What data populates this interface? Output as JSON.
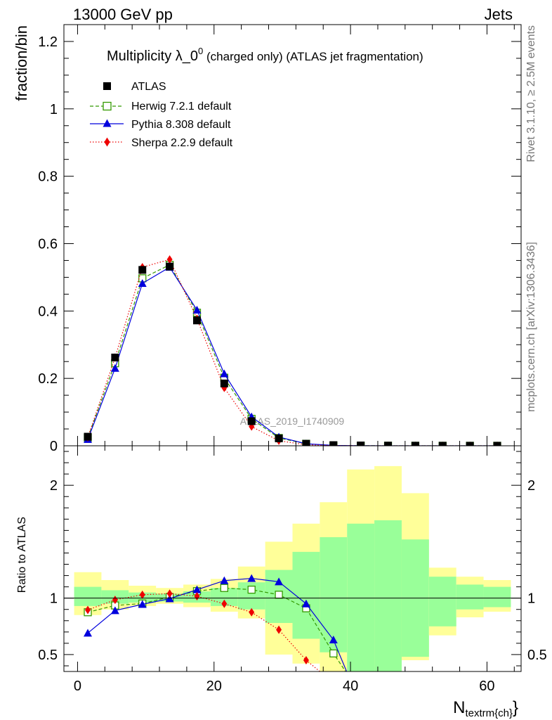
{
  "header": {
    "left": "13000 GeV pp",
    "right": "Jets"
  },
  "title": {
    "main": "Multiplicity λ_0",
    "sup": "0",
    "rest": " (charged only) (ATLAS jet fragmentation)"
  },
  "side_labels": {
    "top": "Rivet 3.1.10, ≥ 2.5M events",
    "bottom": "mcplots.cern.ch [arXiv:1306.3436]"
  },
  "watermark": "ATLAS_2019_I1740909",
  "ylabel_main": "fraction/bin",
  "ylabel_ratio": "Ratio to ATLAS",
  "xlabel": {
    "main": "N",
    "sub": "textrm{ch}",
    "close": "}"
  },
  "colors": {
    "herwig": "#339900",
    "pythia": "#0000dd",
    "sherpa": "#ee0000",
    "band_yellow": "#ffff99",
    "band_green": "#99ff99"
  },
  "chart_data": [
    {
      "type": "scatter",
      "panel": "main",
      "xlim": [
        -2,
        65
      ],
      "ylim": [
        0,
        1.25
      ],
      "xticks": [
        0,
        20,
        40,
        60
      ],
      "yticks": [
        0,
        0.2,
        0.4,
        0.6,
        0.8,
        1,
        1.2
      ],
      "ytick_labels": [
        "0",
        "0.2",
        "0.4",
        "0.6",
        "0.8",
        "1",
        "1.2"
      ],
      "legend_position": "top-left",
      "x": [
        1.5,
        5.5,
        9.5,
        13.5,
        17.5,
        21.5,
        25.5,
        29.5,
        33.5,
        37.5,
        41.5,
        45.5,
        49.5,
        53.5,
        57.5,
        61.5
      ],
      "series": [
        {
          "name": "ATLAS",
          "marker": "square",
          "values": [
            0.027,
            0.262,
            0.522,
            0.532,
            0.372,
            0.185,
            0.073,
            0.022,
            0.006,
            0.002,
            0.001,
            0.0005,
            0.0003,
            0.0002,
            0.0001,
            0.0001
          ]
        },
        {
          "name": "Herwig 7.2.1 default",
          "marker": "open-square",
          "values": [
            0.024,
            0.245,
            0.497,
            0.537,
            0.395,
            0.202,
            0.08,
            0.023,
            0.006,
            0.001,
            0.0003,
            0.0001,
            0.0,
            0.0,
            0.0,
            0.0
          ]
        },
        {
          "name": "Pythia 8.308 default",
          "marker": "triangle",
          "values": [
            0.019,
            0.23,
            0.482,
            0.53,
            0.403,
            0.214,
            0.086,
            0.026,
            0.006,
            0.001,
            0.0003,
            0.0001,
            0.0,
            0.0,
            0.0,
            0.0
          ]
        },
        {
          "name": "Sherpa 2.2.9 default",
          "marker": "diamond",
          "values": [
            0.025,
            0.262,
            0.53,
            0.553,
            0.377,
            0.172,
            0.057,
            0.015,
            0.003,
            0.0005,
            0.0001,
            0.0,
            0.0,
            0.0,
            0.0,
            0.0
          ]
        }
      ]
    },
    {
      "type": "line",
      "panel": "ratio",
      "xlim": [
        -2,
        65
      ],
      "ylim": [
        0.35,
        2.35
      ],
      "xticks": [
        0,
        20,
        40,
        60
      ],
      "yticks": [
        0.5,
        1,
        2
      ],
      "ytick_labels": [
        "0.5",
        "1",
        "2"
      ],
      "bin_edges": [
        -0.5,
        3.5,
        7.5,
        11.5,
        15.5,
        19.5,
        23.5,
        27.5,
        31.5,
        35.5,
        39.5,
        43.5,
        47.5,
        51.5,
        55.5,
        59.5,
        63.5
      ],
      "band_yellow": {
        "lo": [
          0.85,
          0.9,
          0.93,
          0.95,
          0.92,
          0.88,
          0.82,
          0.5,
          0.42,
          0.35,
          0.3,
          0.28,
          0.45,
          0.67,
          0.83,
          0.88
        ],
        "hi": [
          1.23,
          1.16,
          1.11,
          1.09,
          1.12,
          1.17,
          1.28,
          1.5,
          1.66,
          1.85,
          2.14,
          2.17,
          1.93,
          1.27,
          1.19,
          1.16
        ]
      },
      "band_green": {
        "lo": [
          0.93,
          0.95,
          0.96,
          0.97,
          0.96,
          0.93,
          0.9,
          0.78,
          0.64,
          0.52,
          0.35,
          0.3,
          0.48,
          0.75,
          0.9,
          0.92
        ],
        "hi": [
          1.1,
          1.07,
          1.05,
          1.04,
          1.06,
          1.09,
          1.14,
          1.25,
          1.41,
          1.54,
          1.66,
          1.69,
          1.52,
          1.19,
          1.12,
          1.1
        ]
      },
      "series": [
        {
          "name": "Herwig 7.2.1 default",
          "x": [
            1.5,
            5.5,
            9.5,
            13.5,
            17.5,
            21.5,
            25.5,
            29.5,
            33.5,
            37.5,
            39.5
          ],
          "values": [
            0.875,
            0.935,
            0.952,
            1.01,
            1.062,
            1.09,
            1.075,
            1.03,
            0.91,
            0.51,
            0.33
          ]
        },
        {
          "name": "Pythia 8.308 default",
          "x": [
            1.5,
            5.5,
            9.5,
            13.5,
            17.5,
            21.5,
            25.5,
            29.5,
            33.5,
            37.5,
            39.5
          ],
          "values": [
            0.69,
            0.89,
            0.945,
            0.995,
            1.075,
            1.155,
            1.175,
            1.145,
            0.95,
            0.63,
            0.34
          ]
        },
        {
          "name": "Sherpa 2.2.9 default",
          "x": [
            1.5,
            5.5,
            9.5,
            13.5,
            17.5,
            21.5,
            25.5,
            29.5,
            33.5,
            36.5
          ],
          "values": [
            0.895,
            0.985,
            1.03,
            1.04,
            1.017,
            0.95,
            0.875,
            0.72,
            0.45,
            0.3
          ]
        }
      ]
    }
  ]
}
